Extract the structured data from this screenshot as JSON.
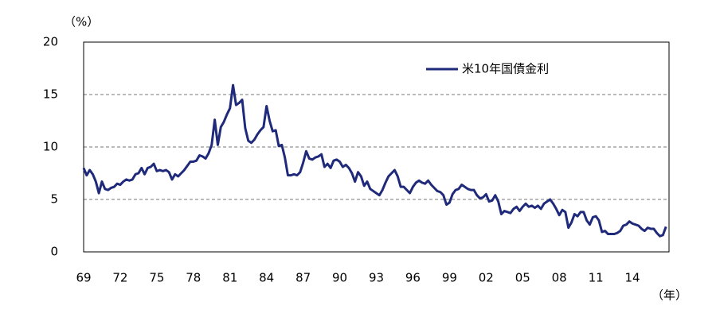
{
  "chart_data": {
    "type": "line",
    "y_unit_label": "（%）",
    "x_unit_label": "（年）",
    "categories": [
      "69",
      null,
      null,
      null,
      null,
      null,
      null,
      null,
      null,
      null,
      null,
      null,
      "72",
      null,
      null,
      null,
      null,
      null,
      null,
      null,
      null,
      null,
      null,
      null,
      "75",
      null,
      null,
      null,
      null,
      null,
      null,
      null,
      null,
      null,
      null,
      null,
      "78",
      null,
      null,
      null,
      null,
      null,
      null,
      null,
      null,
      null,
      null,
      null,
      "81",
      null,
      null,
      null,
      null,
      null,
      null,
      null,
      null,
      null,
      null,
      null,
      "84",
      null,
      null,
      null,
      null,
      null,
      null,
      null,
      null,
      null,
      null,
      null,
      "87",
      null,
      null,
      null,
      null,
      null,
      null,
      null,
      null,
      null,
      null,
      null,
      "90",
      null,
      null,
      null,
      null,
      null,
      null,
      null,
      null,
      null,
      null,
      null,
      "93",
      null,
      null,
      null,
      null,
      null,
      null,
      null,
      null,
      null,
      null,
      null,
      "96",
      null,
      null,
      null,
      null,
      null,
      null,
      null,
      null,
      null,
      null,
      null,
      "99",
      null,
      null,
      null,
      null,
      null,
      null,
      null,
      null,
      null,
      null,
      null,
      "02",
      null,
      null,
      null,
      null,
      null,
      null,
      null,
      null,
      null,
      null,
      null,
      "05",
      null,
      null,
      null,
      null,
      null,
      null,
      null,
      null,
      null,
      null,
      null,
      "08",
      null,
      null,
      null,
      null,
      null,
      null,
      null,
      null,
      null,
      null,
      null,
      "11",
      null,
      null,
      null,
      null,
      null,
      null,
      null,
      null,
      null,
      null,
      null,
      "14",
      null,
      null,
      null,
      null,
      null,
      null,
      null,
      null,
      null,
      null,
      null
    ],
    "series": [
      {
        "name": "米10年国債金利",
        "color": "#1f2a7a",
        "values": [
          8.0,
          7.3,
          7.8,
          7.4,
          6.7,
          5.6,
          6.7,
          6.0,
          5.9,
          6.1,
          6.2,
          6.5,
          6.4,
          6.7,
          6.9,
          6.8,
          6.9,
          7.4,
          7.5,
          8.0,
          7.4,
          8.0,
          8.1,
          8.4,
          7.7,
          7.8,
          7.7,
          7.8,
          7.6,
          6.9,
          7.4,
          7.2,
          7.5,
          7.8,
          8.2,
          8.6,
          8.6,
          8.7,
          9.2,
          9.1,
          8.9,
          9.4,
          10.2,
          12.6,
          10.2,
          11.9,
          12.4,
          13.1,
          13.7,
          15.9,
          14.0,
          14.2,
          14.5,
          11.8,
          10.6,
          10.4,
          10.7,
          11.2,
          11.6,
          11.9,
          13.9,
          12.5,
          11.5,
          11.6,
          10.1,
          10.2,
          9.0,
          7.3,
          7.3,
          7.4,
          7.3,
          7.6,
          8.5,
          9.6,
          8.9,
          8.8,
          9.0,
          9.1,
          9.3,
          8.1,
          8.4,
          8.0,
          8.7,
          8.8,
          8.6,
          8.1,
          8.3,
          8.0,
          7.5,
          6.7,
          7.6,
          7.2,
          6.3,
          6.7,
          6.0,
          5.8,
          5.6,
          5.4,
          5.9,
          6.6,
          7.2,
          7.5,
          7.8,
          7.2,
          6.2,
          6.2,
          5.9,
          5.6,
          6.2,
          6.6,
          6.8,
          6.6,
          6.5,
          6.8,
          6.4,
          6.1,
          5.8,
          5.7,
          5.4,
          4.5,
          4.7,
          5.5,
          5.9,
          6.0,
          6.4,
          6.2,
          6.0,
          5.9,
          5.9,
          5.4,
          5.1,
          5.2,
          5.5,
          4.8,
          4.9,
          5.4,
          4.8,
          3.6,
          3.9,
          3.8,
          3.7,
          4.1,
          4.3,
          3.9,
          4.3,
          4.6,
          4.3,
          4.4,
          4.2,
          4.4,
          4.1,
          4.6,
          4.8,
          5.0,
          4.6,
          4.1,
          3.5,
          4.0,
          3.8,
          2.3,
          2.8,
          3.6,
          3.4,
          3.8,
          3.8,
          3.0,
          2.6,
          3.3,
          3.4,
          3.0,
          1.9,
          2.0,
          1.7,
          1.7,
          1.7,
          1.8,
          2.0,
          2.5,
          2.6,
          2.9,
          2.7,
          2.6,
          2.5,
          2.2,
          2.0,
          2.3,
          2.2,
          2.2,
          1.8,
          1.5,
          1.6,
          2.4
        ]
      }
    ],
    "ylim": [
      0,
      20
    ],
    "yticks": [
      0,
      5,
      10,
      15,
      20
    ],
    "grid": true,
    "legend": "upper right"
  }
}
